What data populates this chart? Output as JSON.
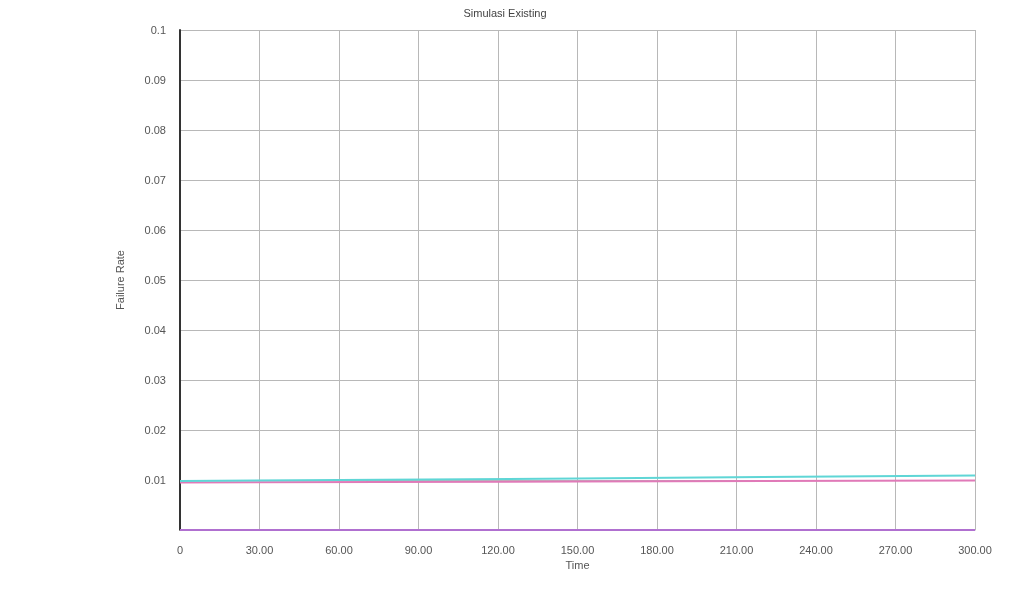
{
  "chart_data": {
    "type": "line",
    "title": "Simulasi Existing",
    "xlabel": "Time",
    "ylabel": "Failure Rate",
    "x": [
      0,
      150,
      300
    ],
    "series": [
      {
        "color": "#e07ab8",
        "values": [
          0.0095,
          0.0097,
          0.0099
        ]
      },
      {
        "color": "#5fd6d6",
        "values": [
          0.0098,
          0.0103,
          0.0109
        ]
      },
      {
        "color": "#b070d0",
        "values": [
          0,
          0,
          0
        ]
      }
    ],
    "xlim": [
      0,
      300
    ],
    "xticks": [
      0,
      {
        "value": 30,
        "label": "30.00"
      },
      {
        "value": 60,
        "label": "60.00"
      },
      {
        "value": 90,
        "label": "90.00"
      },
      {
        "value": 120,
        "label": "120.00"
      },
      {
        "value": 150,
        "label": "150.00"
      },
      {
        "value": 180,
        "label": "180.00"
      },
      {
        "value": 210,
        "label": "210.00"
      },
      {
        "value": 240,
        "label": "240.00"
      },
      {
        "value": 270,
        "label": "270.00"
      },
      {
        "value": 300,
        "label": "300.00"
      }
    ],
    "ylim": [
      0,
      0.1
    ],
    "yticks": [
      {
        "value": 0,
        "label": null
      },
      0.01,
      0.02,
      0.03,
      0.04,
      0.05,
      0.06,
      0.07,
      0.08,
      0.09,
      0.1
    ],
    "grid": true,
    "marker": "none",
    "line_style": "solid"
  }
}
